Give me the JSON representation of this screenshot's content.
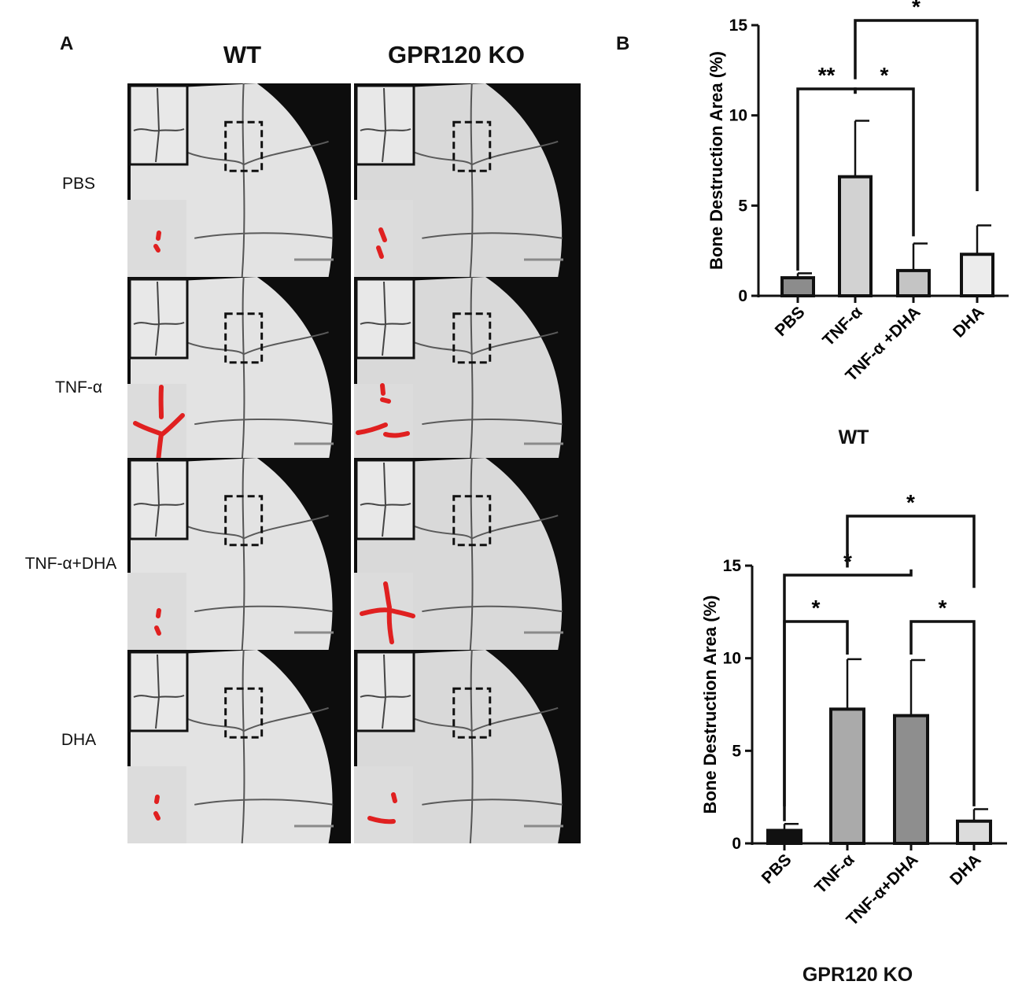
{
  "panel_a": {
    "label": "A",
    "columns": [
      "WT",
      "GPR120 KO"
    ],
    "rows": [
      "PBS",
      "TNF-α",
      "TNF-α+DHA",
      "DHA"
    ]
  },
  "panel_b": {
    "label": "B"
  },
  "colors": {
    "bar_pbs": "#8c8c8c",
    "bar_tnf": "#d2d2d2",
    "bar_combo": "#c4c4c4",
    "bar_dha": "#ececec",
    "ko_bar_pbs": "#111111",
    "ko_bar_tnf": "#aaaaaa",
    "ko_bar_combo": "#8e8e8e",
    "ko_bar_dha": "#dcdcdc",
    "highlight": "#e02020"
  },
  "chart_data": [
    {
      "type": "bar",
      "title": "WT",
      "ylabel": "Bone Destruction Area (%)",
      "ylim": [
        0,
        15
      ],
      "yticks": [
        0,
        5,
        10,
        15
      ],
      "categories": [
        "PBS",
        "TNF-α",
        "TNF-α +DHA",
        "DHA"
      ],
      "values": [
        1.0,
        6.6,
        1.4,
        2.3
      ],
      "errors": [
        0.25,
        3.1,
        1.5,
        1.6
      ],
      "significance": [
        {
          "from": 0,
          "to": 1,
          "label": "**"
        },
        {
          "from": 1,
          "to": 2,
          "label": "*"
        },
        {
          "from": 1,
          "to": 3,
          "label": "*"
        }
      ]
    },
    {
      "type": "bar",
      "title": "GPR120 KO",
      "ylabel": "Bone Destruction Area (%)",
      "ylim": [
        0,
        15
      ],
      "yticks": [
        0,
        5,
        10,
        15
      ],
      "categories": [
        "PBS",
        "TNF-α",
        "TNF-α+DHA",
        "DHA"
      ],
      "values": [
        0.7,
        7.25,
        6.9,
        1.2
      ],
      "errors": [
        0.35,
        2.7,
        3.0,
        0.65
      ],
      "significance": [
        {
          "from": 0,
          "to": 1,
          "label": "*"
        },
        {
          "from": 0,
          "to": 2,
          "label": "*"
        },
        {
          "from": 1,
          "to": 3,
          "label": "*"
        },
        {
          "from": 2,
          "to": 3,
          "label": "*"
        }
      ]
    }
  ]
}
